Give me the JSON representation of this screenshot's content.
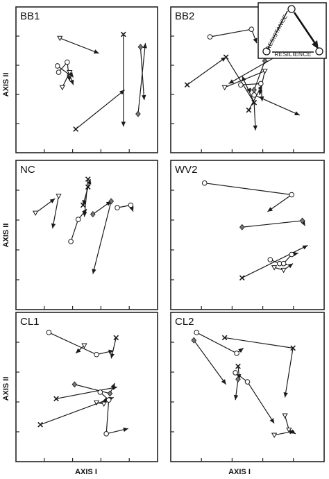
{
  "figure": {
    "y_axis_label": "AXIS II",
    "x_axis_label": "AXIS I"
  },
  "legend_inset": {
    "label_resistance": "RESISTANCE",
    "label_resilience": "RESILIENCE",
    "position": "top-right"
  },
  "chart_data": [
    {
      "type": "line",
      "title": "BB1",
      "xlabel": "",
      "ylabel": "AXIS II",
      "xlim": [
        0,
        100
      ],
      "ylim": [
        0,
        100
      ],
      "grid": false,
      "series": [
        {
          "marker": "triangle",
          "points": [
            [
              28,
              83
            ],
            [
              60,
              71
            ]
          ]
        },
        {
          "marker": "x",
          "points": [
            [
              41,
              11
            ],
            [
              81,
              42
            ]
          ]
        },
        {
          "marker": "x",
          "points": [
            [
              80,
              86
            ],
            [
              80,
              13
            ]
          ]
        },
        {
          "marker": "circle",
          "points": [
            [
              26,
              61
            ],
            [
              36,
              54
            ],
            [
              39,
              46
            ]
          ]
        },
        {
          "marker": "circle",
          "points": [
            [
              27,
              56
            ],
            [
              34,
              64
            ],
            [
              36,
              49
            ]
          ]
        },
        {
          "marker": "triangle",
          "points": [
            [
              30,
              44
            ],
            [
              36,
              56
            ],
            [
              39,
              52
            ]
          ]
        },
        {
          "marker": "diamond",
          "points": [
            [
              94,
              76
            ],
            [
              97,
              34
            ]
          ]
        },
        {
          "marker": "diamond",
          "points": [
            [
              92,
              23
            ],
            [
              98,
              79
            ]
          ]
        }
      ]
    },
    {
      "type": "line",
      "title": "BB2",
      "xlabel": "",
      "ylabel": "",
      "xlim": [
        0,
        100
      ],
      "ylim": [
        0,
        100
      ],
      "grid": false,
      "series": [
        {
          "marker": "circle",
          "points": [
            [
              22,
              84
            ],
            [
              53,
              90
            ],
            [
              57,
              79
            ]
          ]
        },
        {
          "marker": "x",
          "points": [
            [
              5,
              46
            ],
            [
              34,
              68
            ]
          ]
        },
        {
          "marker": "x",
          "points": [
            [
              34,
              68
            ],
            [
              55,
              32
            ],
            [
              46,
              53
            ]
          ]
        },
        {
          "marker": "diamond",
          "points": [
            [
              63,
              65
            ],
            [
              55,
              42
            ],
            [
              49,
              42
            ]
          ]
        },
        {
          "marker": "triangle",
          "points": [
            [
              33,
              44
            ],
            [
              63,
              57
            ],
            [
              59,
              38
            ]
          ]
        },
        {
          "marker": "circle",
          "points": [
            [
              45,
              46
            ],
            [
              60,
              47
            ],
            [
              61,
              33
            ]
          ]
        },
        {
          "marker": "x",
          "points": [
            [
              51,
              26
            ],
            [
              61,
              46
            ]
          ]
        },
        {
          "marker": "diamond",
          "points": [
            [
              74,
              70
            ],
            [
              36,
              47
            ]
          ]
        },
        {
          "marker": "circle",
          "points": [
            [
              55,
              38
            ],
            [
              89,
              22
            ]
          ]
        },
        {
          "marker": "x",
          "points": [
            [
              55,
              32
            ],
            [
              56,
              10
            ]
          ]
        }
      ]
    },
    {
      "type": "line",
      "title": "NC",
      "xlabel": "",
      "ylabel": "AXIS II",
      "xlim": [
        0,
        100
      ],
      "ylim": [
        0,
        100
      ],
      "grid": false,
      "series": [
        {
          "marker": "x",
          "points": [
            [
              51,
              87
            ],
            [
              47,
              73
            ]
          ]
        },
        {
          "marker": "x",
          "points": [
            [
              47,
              73
            ],
            [
              53,
              93
            ]
          ]
        },
        {
          "marker": "x",
          "points": [
            [
              51,
              93
            ],
            [
              48,
              64
            ]
          ]
        },
        {
          "marker": "triangle",
          "points": [
            [
              8,
              67
            ],
            [
              24,
              78
            ]
          ]
        },
        {
          "marker": "triangle",
          "points": [
            [
              27,
              80
            ],
            [
              22,
              55
            ]
          ]
        },
        {
          "marker": "circle",
          "points": [
            [
              37,
              45
            ],
            [
              43,
              62
            ],
            [
              50,
              70
            ]
          ]
        },
        {
          "marker": "diamond",
          "points": [
            [
              55,
              66
            ],
            [
              70,
              76
            ]
          ]
        },
        {
          "marker": "diamond",
          "points": [
            [
              70,
              76
            ],
            [
              55,
              20
            ]
          ]
        },
        {
          "marker": "circle",
          "points": [
            [
              75,
              71
            ],
            [
              86,
              73
            ],
            [
              88,
              68
            ]
          ]
        }
      ]
    },
    {
      "type": "line",
      "title": "WV2",
      "xlabel": "",
      "ylabel": "",
      "xlim": [
        0,
        100
      ],
      "ylim": [
        0,
        100
      ],
      "grid": false,
      "series": [
        {
          "marker": "circle",
          "points": [
            [
              18,
              90
            ],
            [
              83,
              81
            ],
            [
              65,
              68
            ]
          ]
        },
        {
          "marker": "diamond",
          "points": [
            [
              46,
              56
            ],
            [
              91,
              61
            ],
            [
              93,
              57
            ]
          ]
        },
        {
          "marker": "x",
          "points": [
            [
              46,
              17
            ],
            [
              95,
              42
            ]
          ]
        },
        {
          "marker": "circle",
          "points": [
            [
              67,
              31
            ],
            [
              74,
              28
            ],
            [
              80,
              27
            ]
          ]
        },
        {
          "marker": "triangle",
          "points": [
            [
              70,
              25
            ],
            [
              77,
              23
            ],
            [
              84,
              28
            ]
          ]
        },
        {
          "marker": "circle",
          "points": [
            [
              77,
              28
            ],
            [
              83,
              35
            ],
            [
              88,
              36
            ]
          ]
        }
      ]
    },
    {
      "type": "line",
      "title": "CL1",
      "xlabel": "AXIS I",
      "ylabel": "AXIS II",
      "xlim": [
        0,
        100
      ],
      "ylim": [
        0,
        100
      ],
      "grid": false,
      "series": [
        {
          "marker": "circle",
          "points": [
            [
              19,
              92
            ],
            [
              58,
              75
            ],
            [
              72,
              78
            ]
          ]
        },
        {
          "marker": "x",
          "points": [
            [
              25,
              41
            ],
            [
              75,
              50
            ]
          ]
        },
        {
          "marker": "diamond",
          "points": [
            [
              40,
              52
            ],
            [
              69,
              45
            ],
            [
              73,
              53
            ]
          ]
        },
        {
          "marker": "triangle",
          "points": [
            [
              58,
              38
            ],
            [
              64,
              37
            ],
            [
              66,
              42
            ]
          ]
        },
        {
          "marker": "x",
          "points": [
            [
              74,
              88
            ],
            [
              70,
              72
            ]
          ]
        },
        {
          "marker": "x",
          "points": [
            [
              12,
              21
            ],
            [
              72,
              42
            ]
          ]
        },
        {
          "marker": "triangle",
          "points": [
            [
              48,
              82
            ],
            [
              41,
              76
            ]
          ]
        },
        {
          "marker": "circle",
          "points": [
            [
              61,
              46
            ],
            [
              68,
              40
            ],
            [
              66,
              14
            ],
            [
              84,
              18
            ]
          ]
        }
      ]
    },
    {
      "type": "line",
      "title": "CL2",
      "xlabel": "AXIS I",
      "ylabel": "",
      "xlim": [
        0,
        100
      ],
      "ylim": [
        0,
        100
      ],
      "grid": false,
      "series": [
        {
          "marker": "circle",
          "points": [
            [
              12,
              92
            ],
            [
              42,
              76
            ],
            [
              47,
              80
            ]
          ]
        },
        {
          "marker": "x",
          "points": [
            [
              33,
              88
            ],
            [
              84,
              80
            ],
            [
              78,
              42
            ]
          ]
        },
        {
          "marker": "diamond",
          "points": [
            [
              10,
              86
            ],
            [
              34,
              52
            ]
          ]
        },
        {
          "marker": "x",
          "points": [
            [
              43,
              66
            ],
            [
              44,
              56
            ]
          ]
        },
        {
          "marker": "diamond",
          "points": [
            [
              43,
              56
            ],
            [
              41,
              40
            ]
          ]
        },
        {
          "marker": "circle",
          "points": [
            [
              41,
              61
            ],
            [
              50,
              54
            ],
            [
              70,
              22
            ]
          ]
        },
        {
          "marker": "triangle",
          "points": [
            [
              78,
              28
            ],
            [
              81,
              17
            ],
            [
              86,
              14
            ]
          ]
        },
        {
          "marker": "triangle",
          "points": [
            [
              70,
              13
            ],
            [
              85,
              16
            ]
          ]
        }
      ]
    }
  ]
}
